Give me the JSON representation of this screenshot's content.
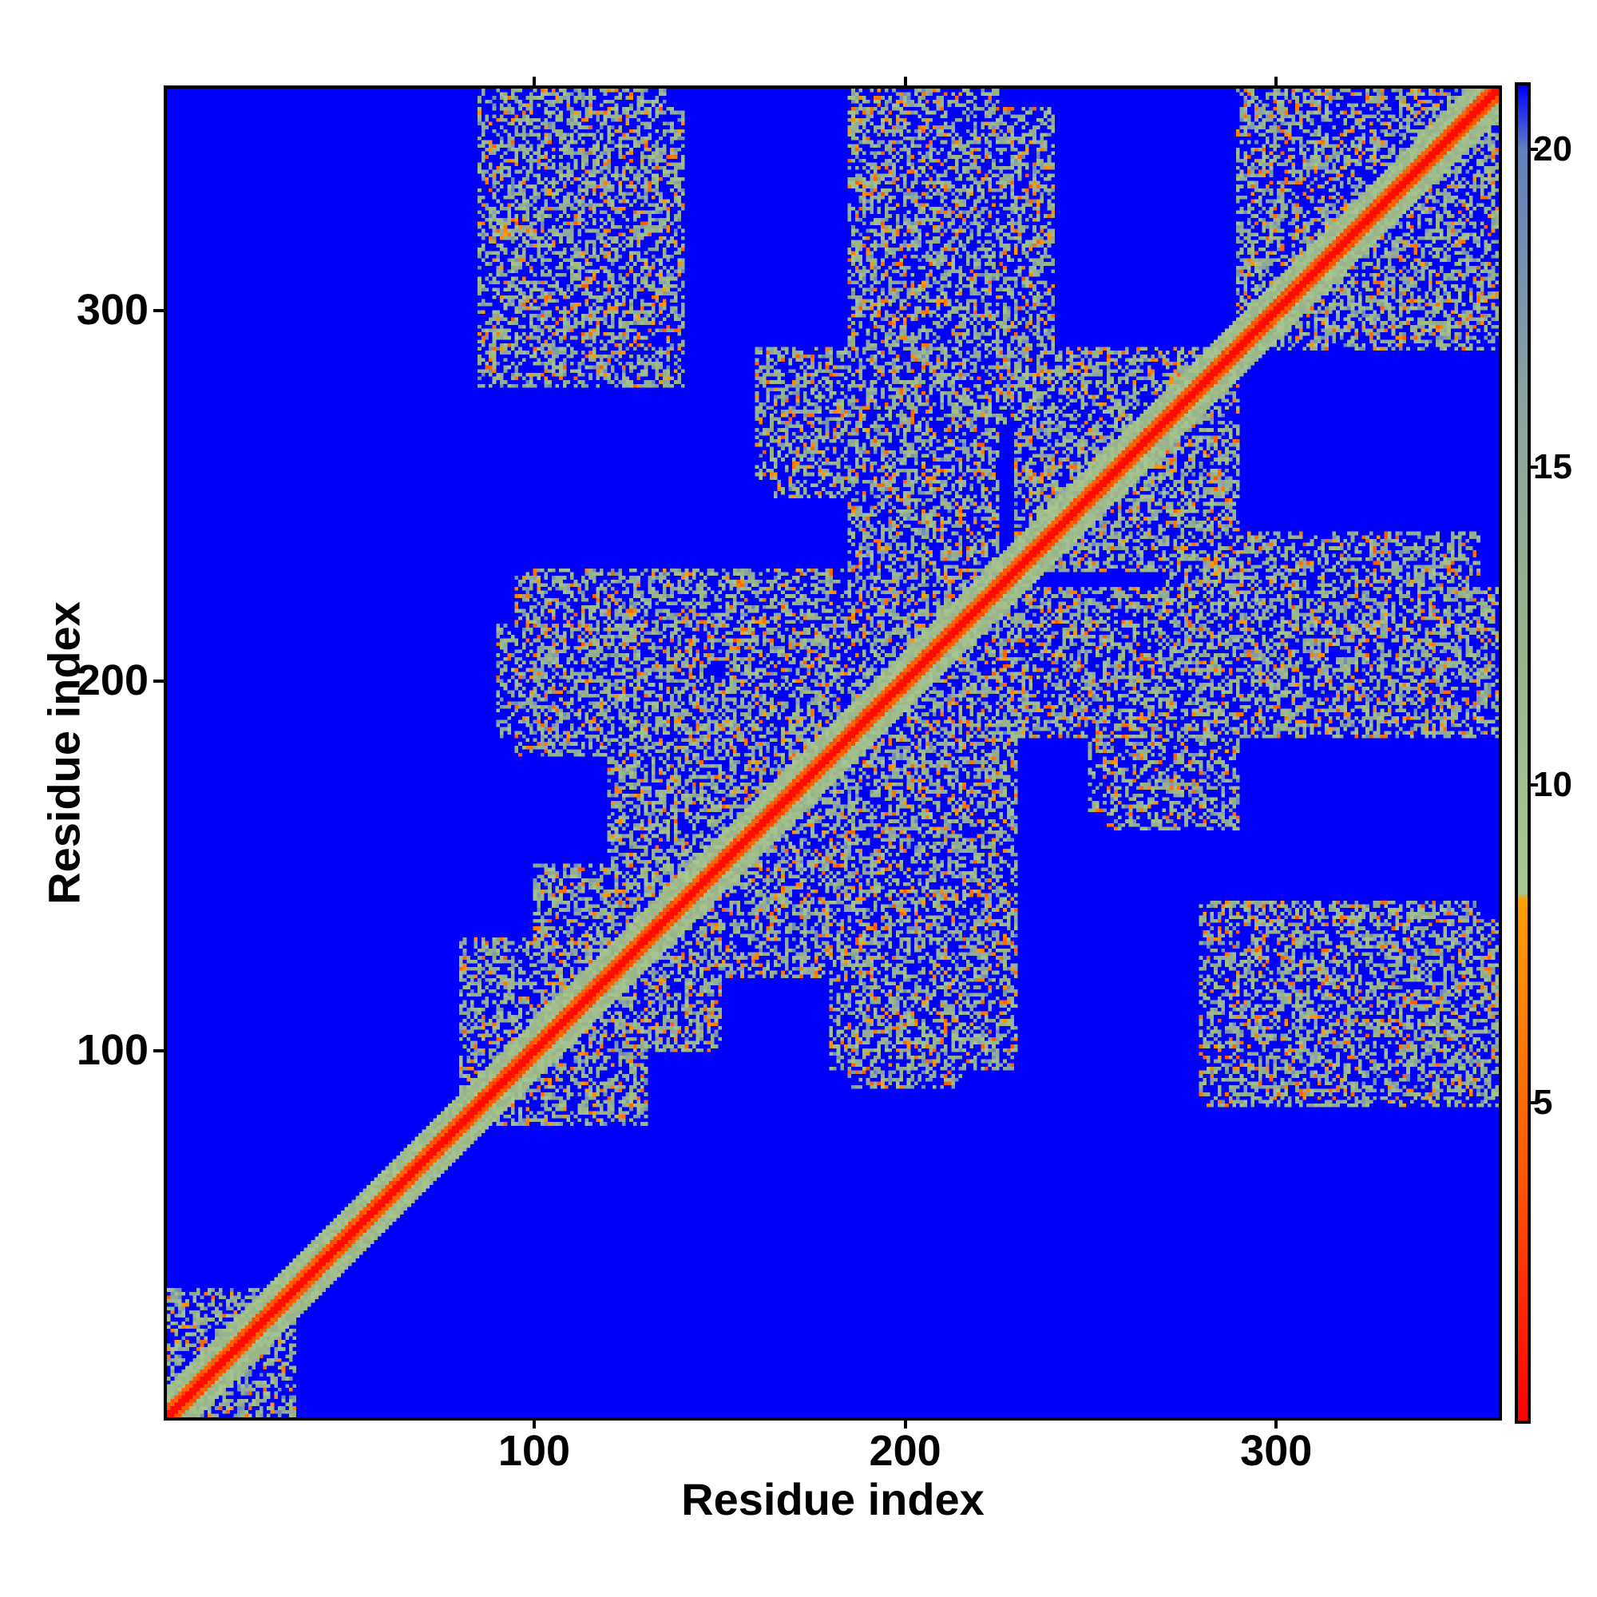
{
  "chart_data": {
    "type": "heatmap",
    "title": "",
    "xlabel": "Residue index",
    "ylabel": "Residue index",
    "xlim": [
      1,
      360
    ],
    "ylim": [
      1,
      360
    ],
    "x_ticks": [
      100,
      200,
      300
    ],
    "y_ticks": [
      100,
      200,
      300
    ],
    "colorbar": {
      "ticks": [
        5,
        10,
        15,
        20
      ],
      "range": [
        0,
        21
      ],
      "colors": [
        {
          "value": 0,
          "color": "#ff0000"
        },
        {
          "value": 4,
          "color": "#ff5a00"
        },
        {
          "value": 8.2,
          "color": "#ffa000"
        },
        {
          "value": 8.3,
          "color": "#a8c890"
        },
        {
          "value": 12,
          "color": "#9ab48a"
        },
        {
          "value": 16,
          "color": "#8aa3a0"
        },
        {
          "value": 20,
          "color": "#6080c0"
        },
        {
          "value": 21,
          "color": "#0000ff"
        }
      ]
    },
    "description_values": {
      "diagonal_distance": 0,
      "background_distance": 21
    },
    "contact_blocks": [
      {
        "x": [
          80,
          130
        ],
        "y": [
          80,
          130
        ]
      },
      {
        "x": [
          100,
          150
        ],
        "y": [
          100,
          150
        ]
      },
      {
        "x": [
          160,
          230
        ],
        "y": [
          160,
          230
        ]
      },
      {
        "x": [
          230,
          290
        ],
        "y": [
          230,
          290
        ]
      },
      {
        "x": [
          290,
          360
        ],
        "y": [
          290,
          360
        ]
      },
      {
        "x": [
          85,
          140
        ],
        "y": [
          280,
          355
        ]
      },
      {
        "x": [
          190,
          240
        ],
        "y": [
          270,
          355
        ]
      },
      {
        "x": [
          165,
          200
        ],
        "y": [
          250,
          290
        ]
      },
      {
        "x": [
          90,
          170
        ],
        "y": [
          185,
          215
        ]
      },
      {
        "x": [
          190,
          360
        ],
        "y": [
          185,
          225
        ]
      },
      {
        "x": [
          120,
          200
        ],
        "y": [
          150,
          200
        ]
      },
      {
        "x": [
          180,
          230
        ],
        "y": [
          95,
          160
        ]
      },
      {
        "x": [
          300,
          360
        ],
        "y": [
          85,
          135
        ]
      },
      {
        "x": [
          255,
          290
        ],
        "y": [
          160,
          200
        ]
      },
      {
        "x": [
          1,
          35
        ],
        "y": [
          1,
          35
        ]
      }
    ]
  }
}
